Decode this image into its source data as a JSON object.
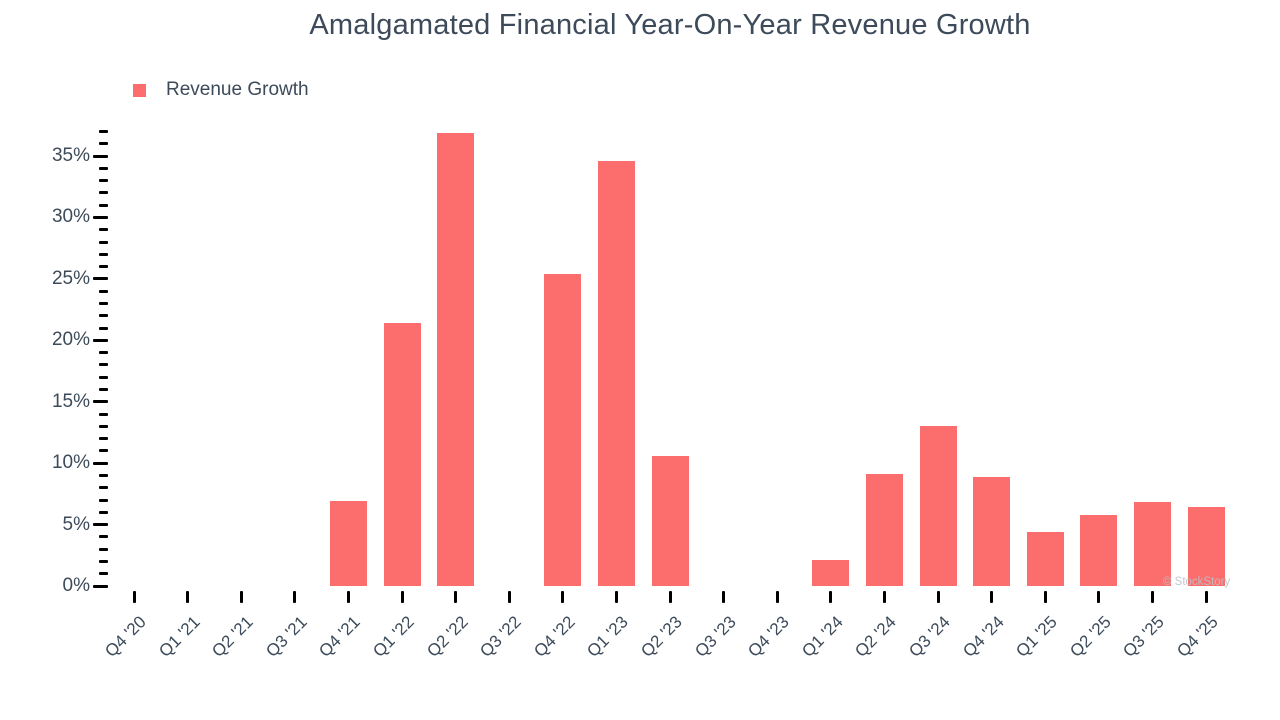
{
  "watermark": "© StockStory",
  "colors": {
    "bar": "#FC6E6E",
    "text": "#3C4A5A",
    "axis": "#000000",
    "watermark": "#BDC0C6"
  },
  "legend": {
    "label": "Revenue Growth"
  },
  "chart_data": {
    "type": "bar",
    "title": "Amalgamated Financial Year-On-Year Revenue Growth",
    "xlabel": "",
    "ylabel": "",
    "categories": [
      "Q4 '20",
      "Q1 '21",
      "Q2 '21",
      "Q3 '21",
      "Q4 '21",
      "Q1 '22",
      "Q2 '22",
      "Q3 '22",
      "Q4 '22",
      "Q1 '23",
      "Q2 '23",
      "Q3 '23",
      "Q4 '23",
      "Q1 '24",
      "Q2 '24",
      "Q3 '24",
      "Q4 '24",
      "Q1 '25",
      "Q2 '25",
      "Q3 '25",
      "Q4 '25"
    ],
    "series": [
      {
        "name": "Revenue Growth",
        "values": [
          null,
          null,
          null,
          null,
          6.9,
          21.4,
          36.9,
          null,
          25.4,
          34.6,
          10.6,
          null,
          null,
          2.1,
          9.1,
          13.0,
          8.9,
          4.4,
          5.8,
          6.8,
          6.4
        ]
      }
    ],
    "y_axis": {
      "min": 0,
      "max": 37,
      "major_step": 5,
      "minor_step": 1,
      "tick_labels": [
        "0%",
        "5%",
        "10%",
        "15%",
        "20%",
        "25%",
        "30%",
        "35%"
      ]
    },
    "grid": false,
    "legend_position": "top-left"
  }
}
